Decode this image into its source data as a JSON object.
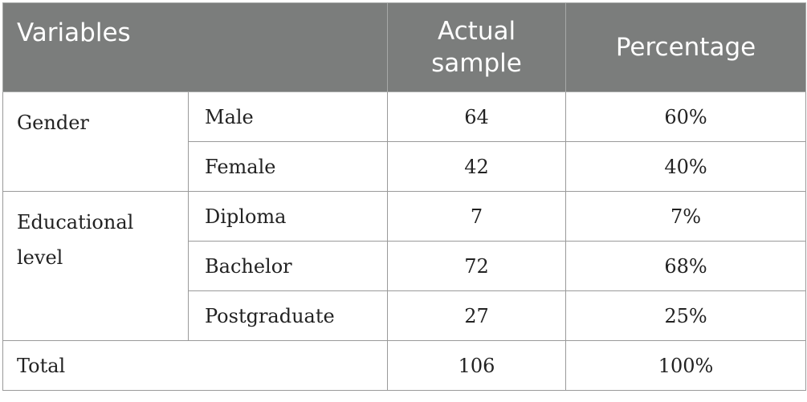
{
  "table": {
    "headers": {
      "variables": "Variables",
      "actual_sample": "Actual sample",
      "percentage": "Percentage"
    },
    "groups": [
      {
        "label": "Gender",
        "rows": [
          {
            "sub": "Male",
            "sample": "64",
            "pct": "60%"
          },
          {
            "sub": "Female",
            "sample": "42",
            "pct": "40%"
          }
        ]
      },
      {
        "label": "Educational level",
        "rows": [
          {
            "sub": "Diploma",
            "sample": "7",
            "pct": "7%"
          },
          {
            "sub": "Bachelor",
            "sample": "72",
            "pct": "68%"
          },
          {
            "sub": "Postgraduate",
            "sample": "27",
            "pct": "25%"
          }
        ]
      }
    ],
    "total": {
      "label": "Total",
      "sample": "106",
      "pct": "100%"
    }
  }
}
